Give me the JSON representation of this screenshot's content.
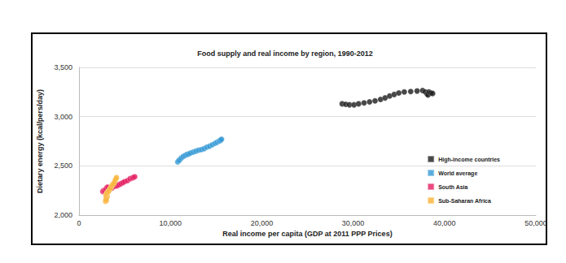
{
  "chart_data": {
    "type": "scatter",
    "title": "Food supply and real income by region, 1990-2012",
    "x_label": "Real income per capita (GDP at 2011 PPP Prices)",
    "y_label": "Dietary energy (kcal/pers/day)",
    "xlim": [
      0,
      50000
    ],
    "xticks": [
      0,
      {
        "value": 10000,
        "label": "10,000"
      },
      {
        "value": 20000,
        "label": "20,000"
      },
      {
        "value": 30000,
        "label": "30,000"
      },
      {
        "value": 40000,
        "label": "40,000"
      },
      {
        "value": 50000,
        "label": "50,000"
      }
    ],
    "ylim": [
      2000,
      3500
    ],
    "yticks": [
      {
        "value": 2000,
        "label": "2,000"
      },
      {
        "value": 2500,
        "label": "2,500"
      },
      {
        "value": 3000,
        "label": "3,000"
      },
      {
        "value": 3500,
        "label": "3,500"
      }
    ],
    "grid": "y",
    "legend": "lower right",
    "marker": "circle",
    "series": [
      {
        "name": "High-income countries",
        "color": "#1a1a1a",
        "x": [
          28800,
          29200,
          29600,
          30100,
          30600,
          31200,
          31800,
          32400,
          33000,
          33500,
          34000,
          34500,
          35000,
          35600,
          36300,
          37000,
          37600,
          37900,
          38100,
          38200,
          38300,
          38500,
          38700
        ],
        "values": [
          3130,
          3125,
          3120,
          3120,
          3130,
          3140,
          3150,
          3160,
          3175,
          3190,
          3210,
          3225,
          3240,
          3250,
          3255,
          3260,
          3265,
          3250,
          3230,
          3220,
          3250,
          3240,
          3235
        ]
      },
      {
        "name": "World average",
        "color": "#3399d4",
        "x": [
          10800,
          10900,
          11000,
          11200,
          11400,
          11600,
          11800,
          12000,
          12200,
          12500,
          12800,
          13100,
          13400,
          13700,
          14000,
          14300,
          14600,
          14900,
          15100,
          15300,
          15400,
          15500,
          15600
        ],
        "values": [
          2540,
          2550,
          2560,
          2580,
          2595,
          2605,
          2615,
          2620,
          2630,
          2640,
          2650,
          2660,
          2665,
          2675,
          2690,
          2700,
          2715,
          2730,
          2740,
          2750,
          2755,
          2760,
          2770
        ]
      },
      {
        "name": "South Asia",
        "color": "#e31c5f",
        "x": [
          2600,
          2700,
          2800,
          2900,
          3000,
          3100,
          3200,
          3400,
          3600,
          3800,
          4000,
          4200,
          4400,
          4600,
          4800,
          5000,
          5300,
          5600,
          5900,
          6100
        ],
        "values": [
          2240,
          2250,
          2245,
          2260,
          2270,
          2285,
          2280,
          2270,
          2275,
          2290,
          2295,
          2300,
          2310,
          2320,
          2330,
          2340,
          2350,
          2370,
          2380,
          2390
        ]
      },
      {
        "name": "Sub-Saharan Africa",
        "color": "#f9b233",
        "x": [
          2900,
          3000,
          2950,
          3100,
          3000,
          2950,
          3000,
          3050,
          3100,
          3200,
          3300,
          3400,
          3500,
          3600,
          3700,
          3800,
          3900,
          4000,
          4100
        ],
        "values": [
          2140,
          2150,
          2160,
          2190,
          2180,
          2200,
          2210,
          2220,
          2230,
          2240,
          2250,
          2270,
          2280,
          2300,
          2310,
          2320,
          2340,
          2360,
          2380
        ]
      }
    ]
  }
}
